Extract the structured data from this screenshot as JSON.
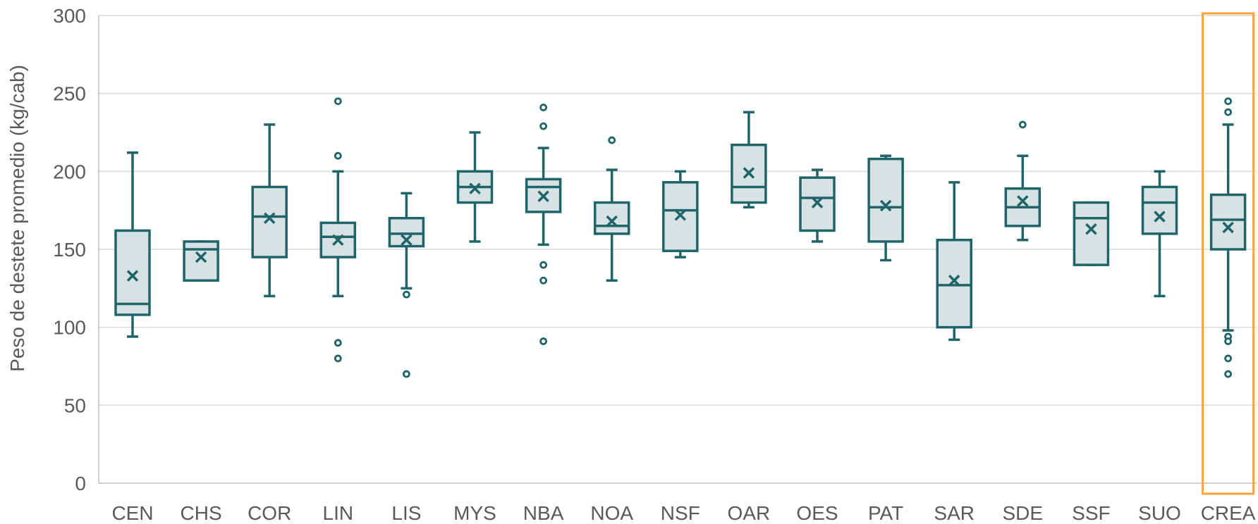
{
  "chart_data": {
    "type": "boxplot",
    "title": "",
    "xlabel": "",
    "ylabel": "Peso de destete promedio (kg/cab)",
    "ylim": [
      0,
      300
    ],
    "yticks": [
      0,
      50,
      100,
      150,
      200,
      250,
      300
    ],
    "grid": true,
    "legend": "none",
    "categories": [
      "CEN",
      "CHS",
      "COR",
      "LIN",
      "LIS",
      "MYS",
      "NBA",
      "NOA",
      "NSF",
      "OAR",
      "OES",
      "PAT",
      "SAR",
      "SDE",
      "SSF",
      "SUO",
      "CREA"
    ],
    "boxes": [
      {
        "category": "CEN",
        "whisker_low": 94,
        "q1": 108,
        "median": 115,
        "q3": 162,
        "whisker_high": 212,
        "mean": 133,
        "outliers": []
      },
      {
        "category": "CHS",
        "whisker_low": 130,
        "q1": 130,
        "median": 150,
        "q3": 155,
        "whisker_high": 155,
        "mean": 145,
        "outliers": []
      },
      {
        "category": "COR",
        "whisker_low": 120,
        "q1": 145,
        "median": 171,
        "q3": 190,
        "whisker_high": 230,
        "mean": 170,
        "outliers": []
      },
      {
        "category": "LIN",
        "whisker_low": 120,
        "q1": 145,
        "median": 158,
        "q3": 167,
        "whisker_high": 200,
        "mean": 156,
        "outliers": [
          245,
          210,
          90,
          80
        ]
      },
      {
        "category": "LIS",
        "whisker_low": 125,
        "q1": 152,
        "median": 160,
        "q3": 170,
        "whisker_high": 186,
        "mean": 156,
        "outliers": [
          121,
          70
        ]
      },
      {
        "category": "MYS",
        "whisker_low": 155,
        "q1": 180,
        "median": 190,
        "q3": 200,
        "whisker_high": 225,
        "mean": 189,
        "outliers": []
      },
      {
        "category": "NBA",
        "whisker_low": 153,
        "q1": 174,
        "median": 190,
        "q3": 195,
        "whisker_high": 215,
        "mean": 184,
        "outliers": [
          241,
          229,
          140,
          130,
          91
        ]
      },
      {
        "category": "NOA",
        "whisker_low": 130,
        "q1": 160,
        "median": 165,
        "q3": 180,
        "whisker_high": 201,
        "mean": 168,
        "outliers": [
          220
        ]
      },
      {
        "category": "NSF",
        "whisker_low": 145,
        "q1": 149,
        "median": 175,
        "q3": 193,
        "whisker_high": 200,
        "mean": 172,
        "outliers": []
      },
      {
        "category": "OAR",
        "whisker_low": 177,
        "q1": 180,
        "median": 190,
        "q3": 217,
        "whisker_high": 238,
        "mean": 199,
        "outliers": []
      },
      {
        "category": "OES",
        "whisker_low": 155,
        "q1": 162,
        "median": 183,
        "q3": 196,
        "whisker_high": 201,
        "mean": 180,
        "outliers": []
      },
      {
        "category": "PAT",
        "whisker_low": 143,
        "q1": 155,
        "median": 177,
        "q3": 208,
        "whisker_high": 210,
        "mean": 178,
        "outliers": []
      },
      {
        "category": "SAR",
        "whisker_low": 92,
        "q1": 100,
        "median": 127,
        "q3": 156,
        "whisker_high": 193,
        "mean": 130,
        "outliers": []
      },
      {
        "category": "SDE",
        "whisker_low": 156,
        "q1": 165,
        "median": 177,
        "q3": 189,
        "whisker_high": 210,
        "mean": 181,
        "outliers": [
          230
        ]
      },
      {
        "category": "SSF",
        "whisker_low": 140,
        "q1": 140,
        "median": 170,
        "q3": 180,
        "whisker_high": 180,
        "mean": 163,
        "outliers": []
      },
      {
        "category": "SUO",
        "whisker_low": 120,
        "q1": 160,
        "median": 180,
        "q3": 190,
        "whisker_high": 200,
        "mean": 171,
        "outliers": []
      },
      {
        "category": "CREA",
        "whisker_low": 98,
        "q1": 150,
        "median": 169,
        "q3": 185,
        "whisker_high": 230,
        "mean": 164,
        "outliers": [
          245,
          238,
          94,
          91,
          80,
          70
        ]
      }
    ],
    "highlighted_category": "CREA",
    "colors": {
      "box_stroke": "#1f6469",
      "box_fill": "#d6e2e3",
      "grid": "#d9d9d9",
      "axis": "#bfbfbf",
      "text": "#595959",
      "highlight": "#f5a437"
    }
  }
}
